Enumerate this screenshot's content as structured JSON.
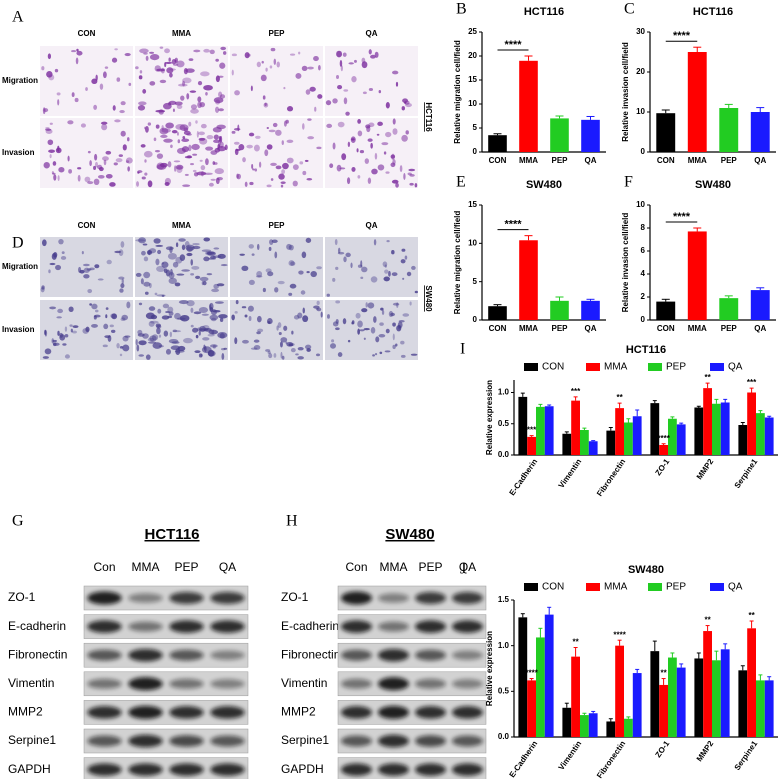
{
  "micrographs": [
    {
      "label": "A",
      "cell_line": "HCT116",
      "columns": [
        "CON",
        "MMA",
        "PEP",
        "QA"
      ],
      "rows": [
        "Migration",
        "Invasion"
      ]
    },
    {
      "label": "D",
      "cell_line": "SW480",
      "columns": [
        "CON",
        "MMA",
        "PEP",
        "QA"
      ],
      "rows": [
        "Migration",
        "Invasion"
      ]
    }
  ],
  "blots": [
    {
      "label": "G",
      "title": "HCT116",
      "columns": [
        "Con",
        "MMA",
        "PEP",
        "QA"
      ],
      "rows": [
        "ZO-1",
        "E-cadherin",
        "Fibronectin",
        "Vimentin",
        "MMP2",
        "Serpine1",
        "GAPDH"
      ]
    },
    {
      "label": "H",
      "title": "SW480",
      "columns": [
        "Con",
        "MMA",
        "PEP",
        "QA"
      ],
      "rows": [
        "ZO-1",
        "E-cadherin",
        "Fibronectin",
        "Vimentin",
        "MMP2",
        "Serpine1",
        "GAPDH"
      ]
    }
  ],
  "chart_data": [
    {
      "type": "bar",
      "panel": "B",
      "title": "HCT116",
      "ylabel": "Relative migration cell/field",
      "categories": [
        "CON",
        "MMA",
        "PEP",
        "QA"
      ],
      "values": [
        3.5,
        19,
        7,
        6.7
      ],
      "errors": [
        0.3,
        1,
        0.5,
        0.7
      ],
      "colors": [
        "#000000",
        "#ff0000",
        "#22cc22",
        "#1a1aff"
      ],
      "ylim": [
        0,
        25
      ],
      "yticks": [
        0,
        5,
        10,
        15,
        20,
        25
      ],
      "annotation": "****"
    },
    {
      "type": "bar",
      "panel": "C",
      "title": "HCT116",
      "ylabel": "Relative invasion cell/field",
      "categories": [
        "CON",
        "MMA",
        "PEP",
        "QA"
      ],
      "values": [
        9.7,
        25,
        11,
        10
      ],
      "errors": [
        0.8,
        1.2,
        0.9,
        1.1
      ],
      "colors": [
        "#000000",
        "#ff0000",
        "#22cc22",
        "#1a1aff"
      ],
      "ylim": [
        0,
        30
      ],
      "yticks": [
        0,
        10,
        20,
        30
      ],
      "annotation": "****"
    },
    {
      "type": "bar",
      "panel": "E",
      "title": "SW480",
      "ylabel": "Relative migration cell/field",
      "categories": [
        "CON",
        "MMA",
        "PEP",
        "QA"
      ],
      "values": [
        1.8,
        10.4,
        2.5,
        2.5
      ],
      "errors": [
        0.2,
        0.6,
        0.5,
        0.2
      ],
      "colors": [
        "#000000",
        "#ff0000",
        "#22cc22",
        "#1a1aff"
      ],
      "ylim": [
        0,
        15
      ],
      "yticks": [
        0,
        5,
        10,
        15
      ],
      "annotation": "****"
    },
    {
      "type": "bar",
      "panel": "F",
      "title": "SW480",
      "ylabel": "Relative invasion cell/field",
      "categories": [
        "CON",
        "MMA",
        "PEP",
        "QA"
      ],
      "values": [
        1.6,
        7.7,
        1.9,
        2.6
      ],
      "errors": [
        0.2,
        0.3,
        0.2,
        0.2
      ],
      "colors": [
        "#000000",
        "#ff0000",
        "#22cc22",
        "#1a1aff"
      ],
      "ylim": [
        0,
        10
      ],
      "yticks": [
        0,
        2,
        4,
        6,
        8,
        10
      ],
      "annotation": "****"
    },
    {
      "type": "grouped_bar",
      "panel": "I",
      "title": "HCT116",
      "ylabel": "Relative expression",
      "legend": "top",
      "categories": [
        "E-Cadherin",
        "Vimentin",
        "Fibronectin",
        "ZO-1",
        "MMP2",
        "Serpine1"
      ],
      "series": [
        {
          "name": "CON",
          "color": "#000000",
          "values": [
            0.93,
            0.34,
            0.39,
            0.83,
            0.76,
            0.48
          ],
          "errors": [
            0.06,
            0.03,
            0.05,
            0.04,
            0.02,
            0.04
          ]
        },
        {
          "name": "MMA",
          "color": "#ff0000",
          "values": [
            0.29,
            0.87,
            0.75,
            0.16,
            1.07,
            1.0
          ],
          "errors": [
            0.02,
            0.06,
            0.08,
            0.02,
            0.08,
            0.07
          ]
        },
        {
          "name": "PEP",
          "color": "#22cc22",
          "values": [
            0.77,
            0.4,
            0.52,
            0.58,
            0.82,
            0.67
          ],
          "errors": [
            0.04,
            0.03,
            0.06,
            0.03,
            0.07,
            0.04
          ]
        },
        {
          "name": "QA",
          "color": "#1a1aff",
          "values": [
            0.78,
            0.22,
            0.62,
            0.49,
            0.84,
            0.6
          ],
          "errors": [
            0.02,
            0.01,
            0.1,
            0.02,
            0.05,
            0.02
          ]
        }
      ],
      "significance": [
        "***",
        "***",
        "**",
        "****",
        "**",
        "***"
      ],
      "ylim": [
        0,
        1.2
      ],
      "yticks": [
        {
          "value": 0,
          "label": "0.0"
        },
        0.5,
        {
          "value": 1,
          "label": "1.0"
        }
      ]
    },
    {
      "type": "grouped_bar",
      "panel": "J",
      "title": "SW480",
      "ylabel": "Relative expression",
      "legend": "top",
      "categories": [
        "E-Cadherin",
        "Vimentin",
        "Fibronectin",
        "ZO-1",
        "MMP2",
        "Serpine1"
      ],
      "series": [
        {
          "name": "CON",
          "color": "#000000",
          "values": [
            1.31,
            0.32,
            0.17,
            0.94,
            0.86,
            0.73
          ],
          "errors": [
            0.04,
            0.05,
            0.03,
            0.11,
            0.06,
            0.05
          ]
        },
        {
          "name": "MMA",
          "color": "#ff0000",
          "values": [
            0.62,
            0.88,
            1.0,
            0.57,
            1.16,
            1.19
          ],
          "errors": [
            0.02,
            0.1,
            0.06,
            0.07,
            0.06,
            0.08
          ]
        },
        {
          "name": "PEP",
          "color": "#22cc22",
          "values": [
            1.09,
            0.24,
            0.2,
            0.87,
            0.84,
            0.62
          ],
          "errors": [
            0.1,
            0.02,
            0.02,
            0.05,
            0.1,
            0.06
          ]
        },
        {
          "name": "QA",
          "color": "#1a1aff",
          "values": [
            1.34,
            0.26,
            0.7,
            0.76,
            0.96,
            0.62
          ],
          "errors": [
            0.08,
            0.02,
            0.04,
            0.04,
            0.06,
            0.04
          ]
        }
      ],
      "significance": [
        "****",
        "**",
        "****",
        "**",
        "**",
        "**"
      ],
      "ylim": [
        0,
        1.5
      ],
      "yticks": [
        {
          "value": 0,
          "label": "0.0"
        },
        0.5,
        {
          "value": 1,
          "label": "1.0"
        },
        1.5
      ]
    }
  ]
}
